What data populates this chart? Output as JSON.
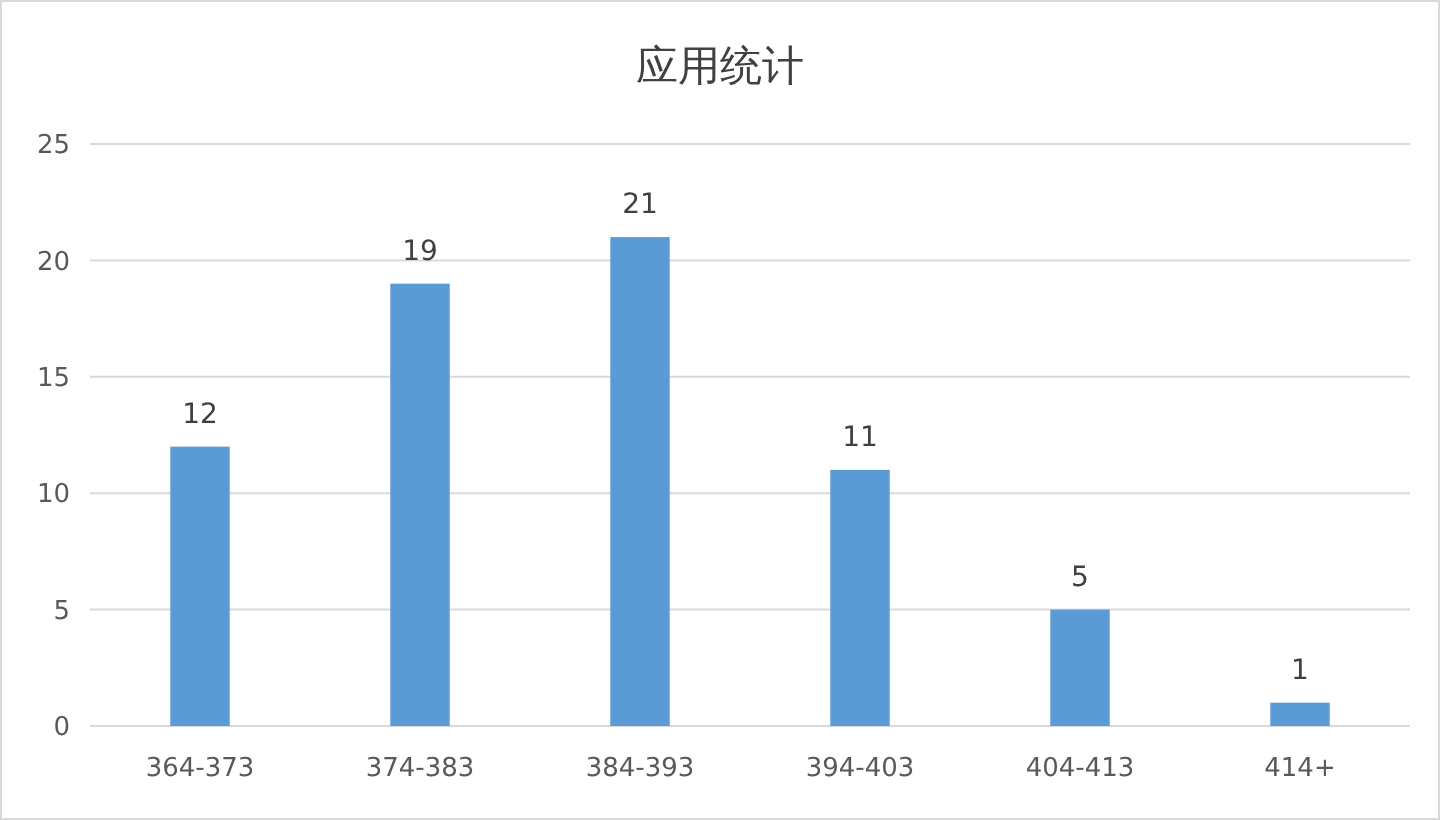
{
  "chart_data": {
    "type": "bar",
    "title": "应用统计",
    "categories": [
      "364-373",
      "374-383",
      "384-393",
      "394-403",
      "404-413",
      "414+"
    ],
    "values": [
      12,
      19,
      21,
      11,
      5,
      1
    ],
    "color": "#5b9bd5",
    "ylim": [
      0,
      25
    ],
    "yticks": [
      0,
      5,
      10,
      15,
      20,
      25
    ],
    "grid": "y",
    "data_labels": true
  }
}
